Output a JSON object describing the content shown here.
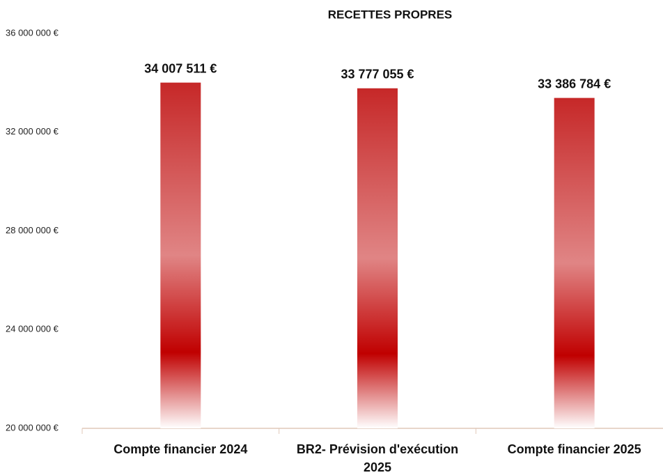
{
  "chart_data": {
    "type": "bar",
    "title": "RECETTES PROPRES",
    "categories": [
      "Compte financier 2024",
      "BR2- Prévision d'exécution 2025",
      "Compte financier 2025"
    ],
    "values": [
      34007511,
      33777055,
      33386784
    ],
    "value_labels": [
      "34 007 511 €",
      "33 777 055 €",
      "33 386 784 €"
    ],
    "color": "#c00000",
    "ylim": [
      20000000,
      36000000
    ],
    "yticks": [
      {
        "value": 20000000,
        "label": "20 000 000 €"
      },
      {
        "value": 24000000,
        "label": "24 000 000 €"
      },
      {
        "value": 28000000,
        "label": "28 000 000 €"
      },
      {
        "value": 32000000,
        "label": "32 000 000 €"
      },
      {
        "value": 36000000,
        "label": "36 000 000 €"
      }
    ],
    "grid": false
  }
}
